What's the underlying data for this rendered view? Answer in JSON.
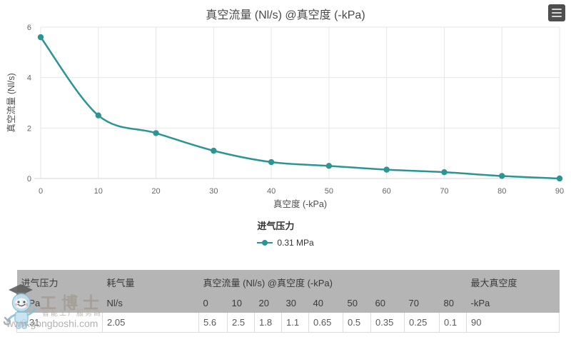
{
  "context_menu": {
    "icon": "hamburger-menu-icon"
  },
  "chart_data": {
    "type": "line",
    "title": "真空流量 (Nl/s) @真空度 (-kPa)",
    "xlabel": "真空度 (-kPa)",
    "ylabel": "真空流量 (Nl/s)",
    "x": [
      0,
      10,
      20,
      30,
      40,
      50,
      60,
      70,
      80,
      90
    ],
    "series": [
      {
        "name": "0.31 MPa",
        "color": "#2b9594",
        "values": [
          5.6,
          2.5,
          1.8,
          1.1,
          0.65,
          0.5,
          0.35,
          0.25,
          0.1,
          0
        ]
      }
    ],
    "legend_title": "进气压力",
    "legend_position": "bottom-center",
    "xlim": [
      0,
      90
    ],
    "ylim": [
      0,
      6
    ],
    "x_ticks": [
      0,
      10,
      20,
      30,
      40,
      50,
      60,
      70,
      80,
      90
    ],
    "y_ticks": [
      0,
      2,
      4,
      6
    ],
    "grid": true
  },
  "table": {
    "groups": [
      {
        "label": "进气压力",
        "colspan": 1
      },
      {
        "label": "耗气量",
        "colspan": 1
      },
      {
        "label": "真空流量 (Nl/s) @真空度 (-kPa)",
        "colspan": 9
      },
      {
        "label": "最大真空度",
        "colspan": 1
      }
    ],
    "subheaders": [
      "MPa",
      "Nl/s",
      "0",
      "10",
      "20",
      "30",
      "40",
      "50",
      "60",
      "70",
      "80",
      "-kPa"
    ],
    "row": [
      "0.31",
      "2.05",
      "5.6",
      "2.5",
      "1.8",
      "1.1",
      "0.65",
      "0.5",
      "0.35",
      "0.25",
      "0.1",
      "90"
    ]
  },
  "watermark": {
    "brand": "工博士",
    "tagline": "智能工厂服务商",
    "url": "www.gongboshi.com"
  },
  "colors": {
    "series_teal": "#2b9594",
    "grid_line": "#e6e6e6",
    "axis_line": "#d6d6d6",
    "tick_label": "#666666",
    "axis_title": "#4d4d4d",
    "chart_title": "#4a4a4a",
    "table_header_bg": "#b5b5b5",
    "table_border": "#dcdcdc",
    "menu_button_bg": "#4e4e4e"
  }
}
